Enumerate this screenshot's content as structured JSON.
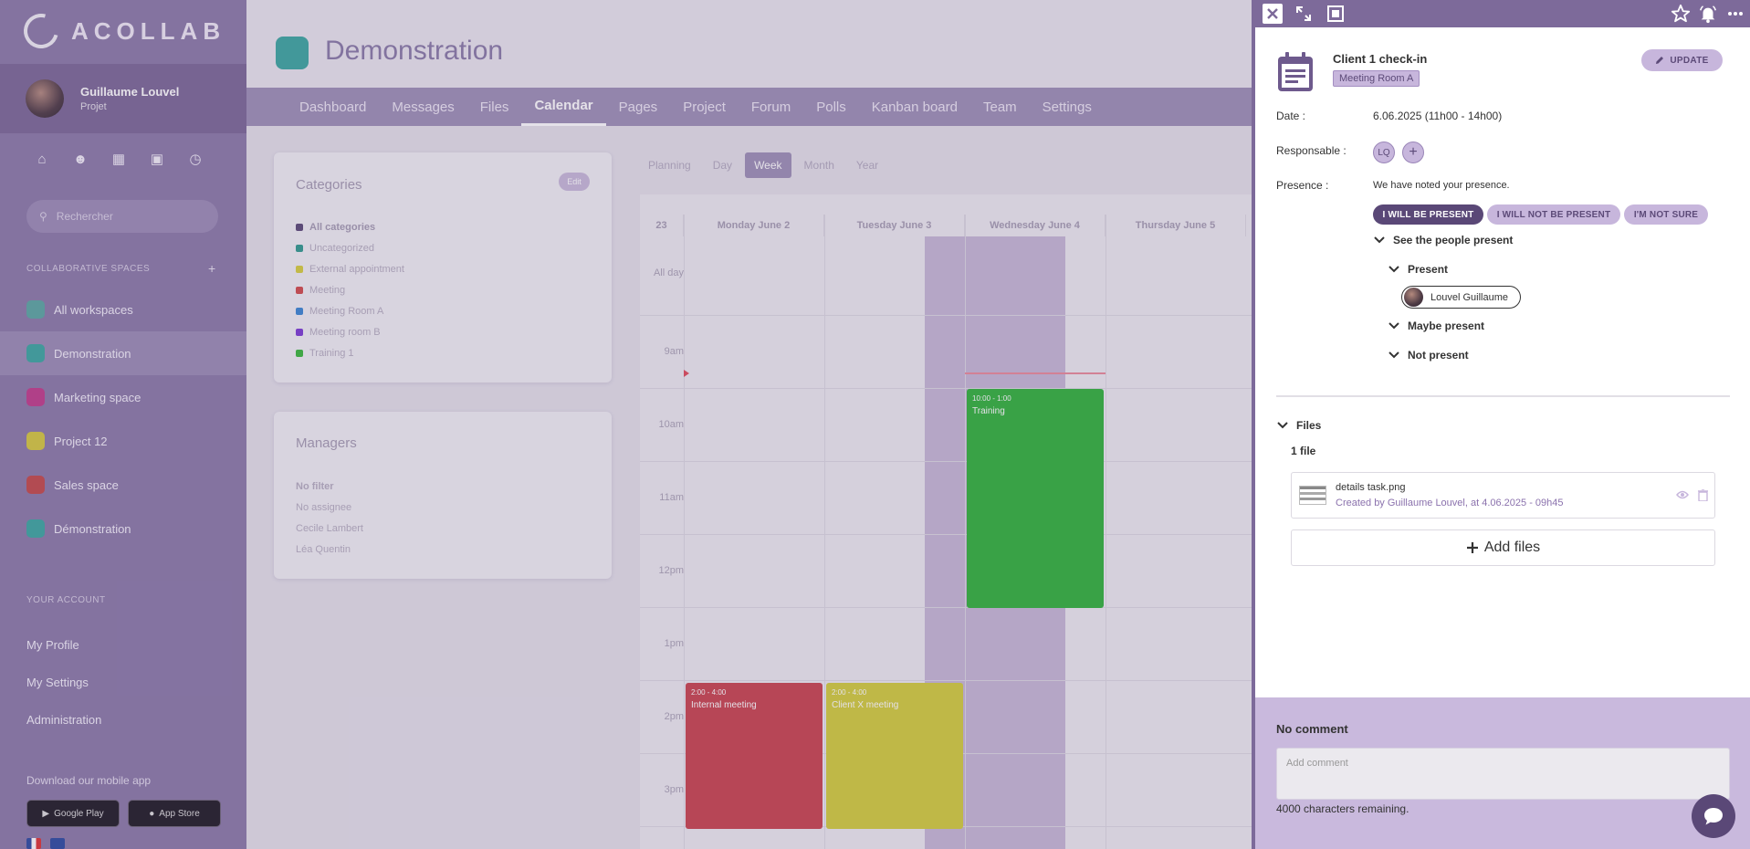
{
  "sidebar": {
    "logo": "ACOLLAB",
    "user": {
      "name": "Guillaume Louvel",
      "subtitle": "Projet"
    },
    "search_placeholder": "Rechercher",
    "collab_title": "COLLABORATIVE SPACES",
    "add_label": "+",
    "spaces": [
      {
        "label": "All workspaces",
        "color": "#5aa6a2"
      },
      {
        "label": "Demonstration",
        "color": "#3aa6a0"
      },
      {
        "label": "Marketing space",
        "color": "#c03b8a"
      },
      {
        "label": "Project 12",
        "color": "#d5c83e"
      },
      {
        "label": "Sales space",
        "color": "#c34848"
      },
      {
        "label": "Démonstration",
        "color": "#3aa6a0"
      }
    ],
    "account_title": "YOUR ACCOUNT",
    "account_items": [
      "My Profile",
      "My Settings",
      "Administration"
    ],
    "download_text": "Download our mobile app",
    "stores": [
      "Google Play",
      "App Store"
    ]
  },
  "workspace": {
    "title": "Demonstration",
    "tabs": [
      "Dashboard",
      "Messages",
      "Files",
      "Calendar",
      "Pages",
      "Project",
      "Forum",
      "Polls",
      "Kanban board",
      "Team",
      "Settings"
    ],
    "active_tab": "Calendar"
  },
  "categories": {
    "title": "Categories",
    "edit": "Edit",
    "items": [
      {
        "label": "All categories",
        "color": "#5a4877"
      },
      {
        "label": "Uncategorized",
        "color": "#2f9a8e"
      },
      {
        "label": "External appointment",
        "color": "#d6cf3c"
      },
      {
        "label": "Meeting",
        "color": "#d14a4a"
      },
      {
        "label": "Meeting Room A",
        "color": "#3a86d4"
      },
      {
        "label": "Meeting room B",
        "color": "#7a3ad4"
      },
      {
        "label": "Training 1",
        "color": "#37b83a"
      }
    ]
  },
  "managers": {
    "title": "Managers",
    "items": [
      "No filter",
      "No assignee",
      "Cecile Lambert",
      "Léa Quentin"
    ]
  },
  "calendar": {
    "views": [
      "Planning",
      "Day",
      "Week",
      "Month",
      "Year"
    ],
    "active_view": "Week",
    "week_num": "23",
    "days": [
      "Monday June 2",
      "Tuesday June 3",
      "Wednesday June 4",
      "Thursday June 5"
    ],
    "allday": "All day",
    "hours": [
      "9am",
      "10am",
      "11am",
      "12pm",
      "1pm",
      "2pm",
      "3pm"
    ],
    "events": [
      {
        "time": "10:00 - 1:00",
        "title": "Training",
        "color": "#2fb23a"
      },
      {
        "time": "2:00 - 4:00",
        "title": "Internal meeting",
        "color": "#c9434d"
      },
      {
        "time": "2:00 - 4:00",
        "title": "Client X meeting",
        "color": "#d2cd3b"
      }
    ]
  },
  "panel": {
    "title": "Client 1 check-in",
    "tag": "Meeting Room A",
    "update_label": "UPDATE",
    "date_label": "Date :",
    "date_value": "6.06.2025 (11h00 - 14h00)",
    "resp_label": "Responsable :",
    "resp_initials": "LQ",
    "resp_add": "+",
    "presence_label": "Presence :",
    "presence_text": "We have noted your presence.",
    "btn_present": "I WILL BE PRESENT",
    "btn_not_present": "I WILL NOT BE PRESENT",
    "btn_not_sure": "I'M NOT SURE",
    "see_people": "See the people present",
    "present": "Present",
    "present_person": "Louvel Guillaume",
    "maybe_present": "Maybe present",
    "not_present": "Not present",
    "files_title": "Files",
    "files_count": "1 file",
    "file_name": "details task.png",
    "file_meta": "Created by Guillaume Louvel, at 4.06.2025 - 09h45",
    "add_files": "Add files",
    "no_comment": "No comment",
    "comment_placeholder": "Add comment",
    "chars_remaining": "4000 characters remaining."
  }
}
